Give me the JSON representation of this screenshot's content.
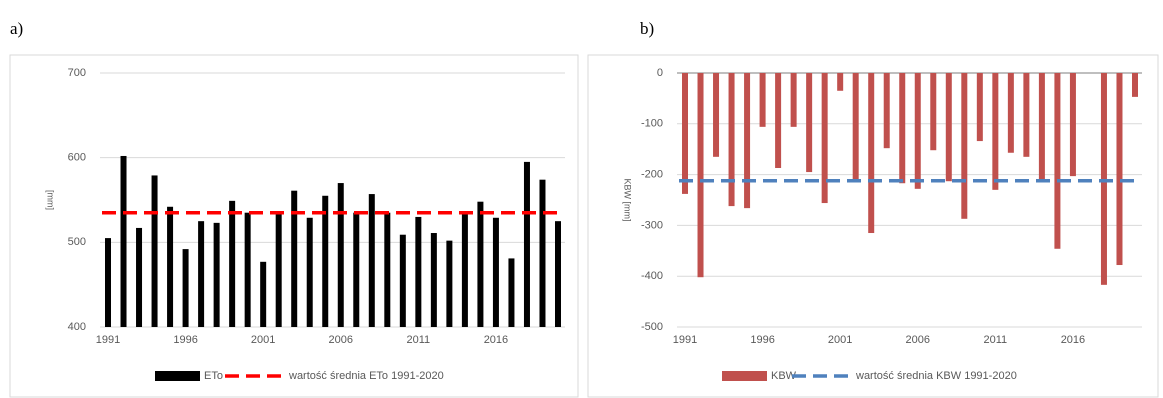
{
  "chart_data": [
    {
      "type": "bar",
      "panel_label": "a)",
      "y_label": "[mm]",
      "categories": [
        "1991",
        null,
        null,
        null,
        null,
        "1996",
        null,
        null,
        null,
        null,
        "2001",
        null,
        null,
        null,
        null,
        "2006",
        null,
        null,
        null,
        null,
        "2011",
        null,
        null,
        null,
        null,
        "2016",
        null,
        null,
        null,
        null
      ],
      "series": [
        {
          "name": "ETo",
          "color": "#000000",
          "values": [
            505,
            602,
            517,
            579,
            542,
            492,
            525,
            523,
            549,
            535,
            477,
            535,
            561,
            529,
            555,
            570,
            535,
            557,
            535,
            509,
            530,
            511,
            502,
            535,
            548,
            529,
            481,
            595,
            574,
            525
          ]
        },
        {
          "name": "wartość średnia ETo 1991-2020",
          "type": "line",
          "color": "#ff0000",
          "value": 535
        }
      ],
      "ylim": [
        400,
        700
      ],
      "yticks": [
        400,
        500,
        600,
        700
      ],
      "grid": true
    },
    {
      "type": "bar",
      "panel_label": "b)",
      "y_label": "KBW [mm]",
      "categories": [
        "1991",
        null,
        null,
        null,
        null,
        "1996",
        null,
        null,
        null,
        null,
        "2001",
        null,
        null,
        null,
        null,
        "2006",
        null,
        null,
        null,
        null,
        "2011",
        null,
        null,
        null,
        null,
        "2016",
        null,
        null,
        null,
        null
      ],
      "series": [
        {
          "name": "KBW",
          "color": "#c0504d",
          "values": [
            -238,
            -402,
            -165,
            -262,
            -266,
            -106,
            -187,
            -106,
            -195,
            -256,
            -35,
            -215,
            -315,
            -148,
            -217,
            -228,
            -152,
            -213,
            -287,
            -134,
            -230,
            -157,
            -165,
            -213,
            -346,
            -203,
            null,
            -417,
            -378,
            -47
          ]
        },
        {
          "name": "wartość średnia KBW 1991-2020",
          "type": "line",
          "color": "#4f81bd",
          "value": -212
        }
      ],
      "ylim": [
        -500,
        0
      ],
      "yticks": [
        -500,
        -400,
        -300,
        -200,
        -100,
        0
      ],
      "grid": true
    }
  ]
}
